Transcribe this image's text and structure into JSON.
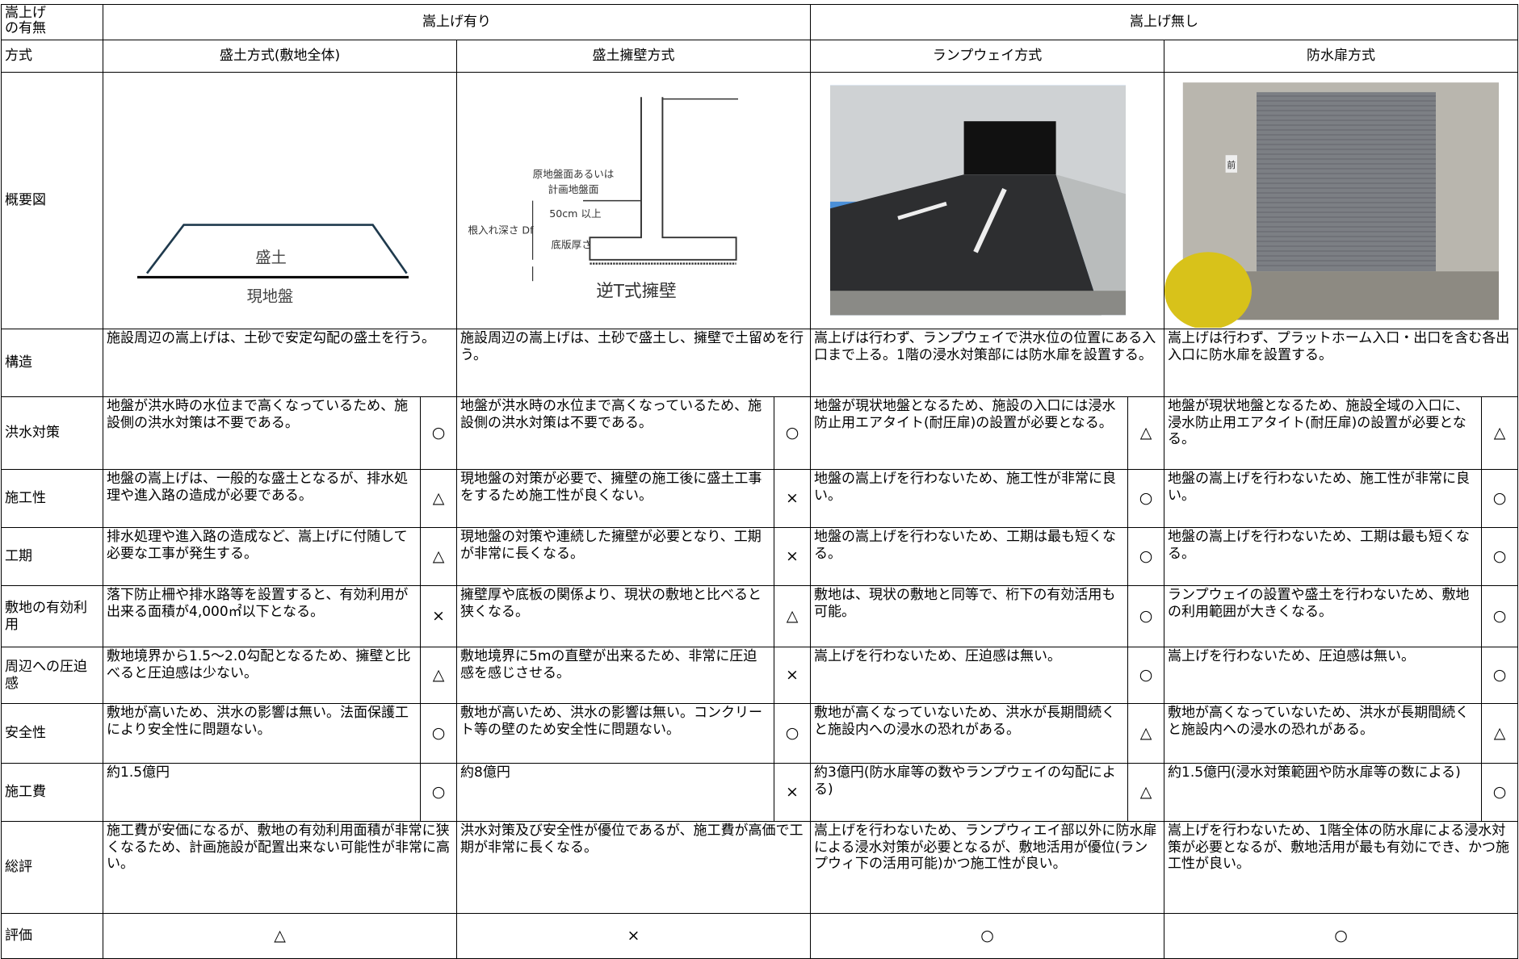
{
  "header": {
    "corner": "嵩上げの有無",
    "groups": [
      "嵩上げ有り",
      "嵩上げ無し"
    ],
    "method_label": "方式",
    "methods": [
      "盛土方式(敷地全体)",
      "盛土擁壁方式",
      "ランプウェイ方式",
      "防水扉方式"
    ]
  },
  "overview": {
    "label": "概要図",
    "embankment": [
      "盛土",
      "現地盤"
    ],
    "retaining_wall": [
      "原地盤面あるいは",
      "計画地盤面",
      "50cm 以上",
      "根入れ深さ Df",
      "底版厚さ",
      "逆T式擁壁"
    ],
    "door_sign": "前"
  },
  "rows": [
    {
      "label": "構造",
      "cells": [
        {
          "text": "施設周辺の嵩上げは、土砂で安定勾配の盛土を行う。"
        },
        {
          "text": "施設周辺の嵩上げは、土砂で盛土し、擁壁で土留めを行う。"
        },
        {
          "text": "嵩上げは行わず、ランプウェイで洪水位の位置にある入口まで上る。1階の浸水対策部には防水扉を設置する。"
        },
        {
          "text": "嵩上げは行わず、プラットホーム入口・出口を含む各出入口に防水扉を設置する。"
        }
      ]
    },
    {
      "label": "洪水対策",
      "cells": [
        {
          "text": "地盤が洪水時の水位まで高くなっているため、施設側の洪水対策は不要である。",
          "mark": "○"
        },
        {
          "text": "地盤が洪水時の水位まで高くなっているため、施設側の洪水対策は不要である。",
          "mark": "○"
        },
        {
          "text": "地盤が現状地盤となるため、施設の入口には浸水防止用エアタイト(耐圧扉)の設置が必要となる。",
          "mark": "△"
        },
        {
          "text": "地盤が現状地盤となるため、施設全域の入口に、浸水防止用エアタイト(耐圧扉)の設置が必要となる。",
          "mark": "△"
        }
      ]
    },
    {
      "label": "施工性",
      "cells": [
        {
          "text": "地盤の嵩上げは、一般的な盛土となるが、排水処理や進入路の造成が必要である。",
          "mark": "△"
        },
        {
          "text": "現地盤の対策が必要で、擁壁の施工後に盛土工事をするため施工性が良くない。",
          "mark": "×"
        },
        {
          "text": "地盤の嵩上げを行わないため、施工性が非常に良い。",
          "mark": "○"
        },
        {
          "text": "地盤の嵩上げを行わないため、施工性が非常に良い。",
          "mark": "○"
        }
      ]
    },
    {
      "label": "工期",
      "cells": [
        {
          "text": "排水処理や進入路の造成など、嵩上げに付随して必要な工事が発生する。",
          "mark": "△"
        },
        {
          "text": "現地盤の対策や連続した擁壁が必要となり、工期が非常に長くなる。",
          "mark": "×"
        },
        {
          "text": "地盤の嵩上げを行わないため、工期は最も短くなる。",
          "mark": "○"
        },
        {
          "text": "地盤の嵩上げを行わないため、工期は最も短くなる。",
          "mark": "○"
        }
      ]
    },
    {
      "label": "敷地の有効利用",
      "cells": [
        {
          "text": "落下防止柵や排水路等を設置すると、有効利用が出来る面積が4,000㎡以下となる。",
          "mark": "×"
        },
        {
          "text": "擁壁厚や底板の関係より、現状の敷地と比べると狭くなる。",
          "mark": "△"
        },
        {
          "text": "敷地は、現状の敷地と同等で、桁下の有効活用も可能。",
          "mark": "○"
        },
        {
          "text": "ランプウェイの設置や盛土を行わないため、敷地の利用範囲が大きくなる。",
          "mark": "○"
        }
      ]
    },
    {
      "label": "周辺への圧迫感",
      "cells": [
        {
          "text": "敷地境界から1.5～2.0勾配となるため、擁壁と比べると圧迫感は少ない。",
          "mark": "△"
        },
        {
          "text": "敷地境界に5mの直壁が出来るため、非常に圧迫感を感じさせる。",
          "mark": "×"
        },
        {
          "text": "嵩上げを行わないため、圧迫感は無い。",
          "mark": "○"
        },
        {
          "text": "嵩上げを行わないため、圧迫感は無い。",
          "mark": "○"
        }
      ]
    },
    {
      "label": "安全性",
      "cells": [
        {
          "text": "敷地が高いため、洪水の影響は無い。法面保護工により安全性に問題ない。",
          "mark": "○"
        },
        {
          "text": "敷地が高いため、洪水の影響は無い。コンクリート等の壁のため安全性に問題ない。",
          "mark": "○"
        },
        {
          "text": "敷地が高くなっていないため、洪水が長期間続くと施設内への浸水の恐れがある。",
          "mark": "△"
        },
        {
          "text": "敷地が高くなっていないため、洪水が長期間続くと施設内への浸水の恐れがある。",
          "mark": "△"
        }
      ]
    },
    {
      "label": "施工費",
      "cells": [
        {
          "text": "約1.5億円",
          "mark": "○"
        },
        {
          "text": "約8億円",
          "mark": "×"
        },
        {
          "text": "約3億円(防水扉等の数やランプウェイの勾配による)",
          "mark": "△"
        },
        {
          "text": "約1.5億円(浸水対策範囲や防水扉等の数による)",
          "mark": "○"
        }
      ]
    },
    {
      "label": "総評",
      "cells": [
        {
          "text": "施工費が安価になるが、敷地の有効利用面積が非常に狭くなるため、計画施設が配置出来ない可能性が非常に高い。"
        },
        {
          "text": "洪水対策及び安全性が優位であるが、施工費が高価で工期が非常に長くなる。"
        },
        {
          "text": "嵩上げを行わないため、ランプウィエイ部以外に防水扉による浸水対策が必要となるが、敷地活用が優位(ランプウィ下の活用可能)かつ施工性が良い。"
        },
        {
          "text": "嵩上げを行わないため、1階全体の防水扉による浸水対策が必要となるが、敷地活用が最も有効にでき、かつ施工性が良い。"
        }
      ]
    }
  ],
  "rating": {
    "label": "評価",
    "marks": [
      "△",
      "×",
      "○",
      "○"
    ]
  }
}
